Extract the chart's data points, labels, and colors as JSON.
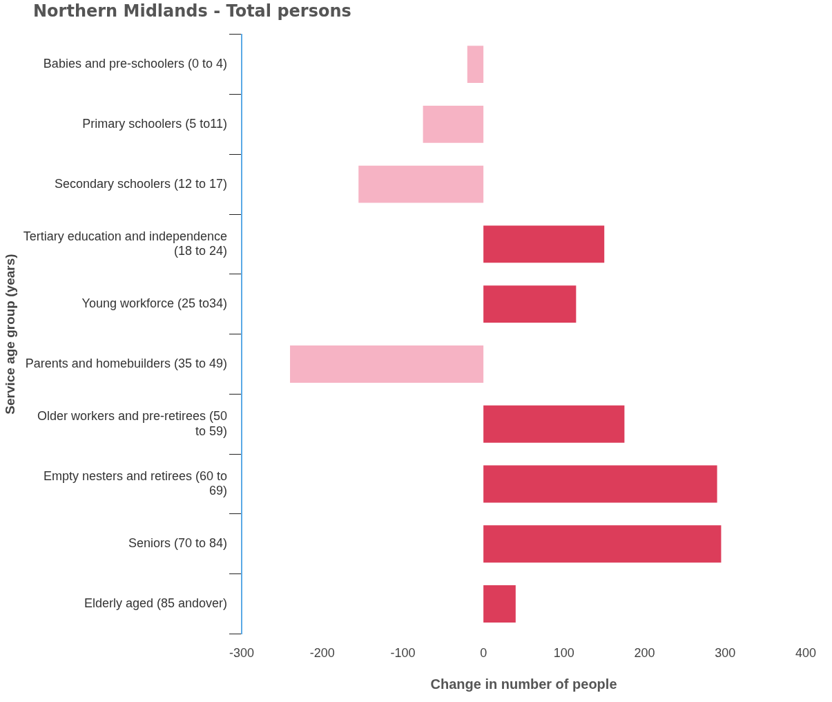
{
  "chart_data": {
    "type": "bar",
    "orientation": "horizontal",
    "title": "Northern Midlands - Total persons",
    "xlabel": "Change in number of people",
    "ylabel": "Service age group (years)",
    "categories": [
      "Babies and pre-schoolers (0 to 4)",
      "Primary schoolers (5 to11)",
      "Secondary schoolers (12 to 17)",
      "Tertiary education and independence (18 to 24)",
      "Young workforce (25 to34)",
      "Parents and homebuilders (35 to 49)",
      "Older workers and pre-retirees (50 to 59)",
      "Empty nesters and retirees (60 to 69)",
      "Seniors (70 to 84)",
      "Elderly aged (85 andover)"
    ],
    "values": [
      -20,
      -75,
      -155,
      150,
      115,
      -240,
      175,
      290,
      295,
      40
    ],
    "colors": [
      "#f6b3c4",
      "#f6b3c4",
      "#f6b3c4",
      "#dc3d5a",
      "#dc3d5a",
      "#f6b3c4",
      "#dc3d5a",
      "#dc3d5a",
      "#dc3d5a",
      "#dc3d5a"
    ],
    "xlim": [
      -300,
      400
    ],
    "xticks": [
      -300,
      -200,
      -100,
      0,
      100,
      200,
      300,
      400
    ],
    "grid": false,
    "legend": false
  }
}
